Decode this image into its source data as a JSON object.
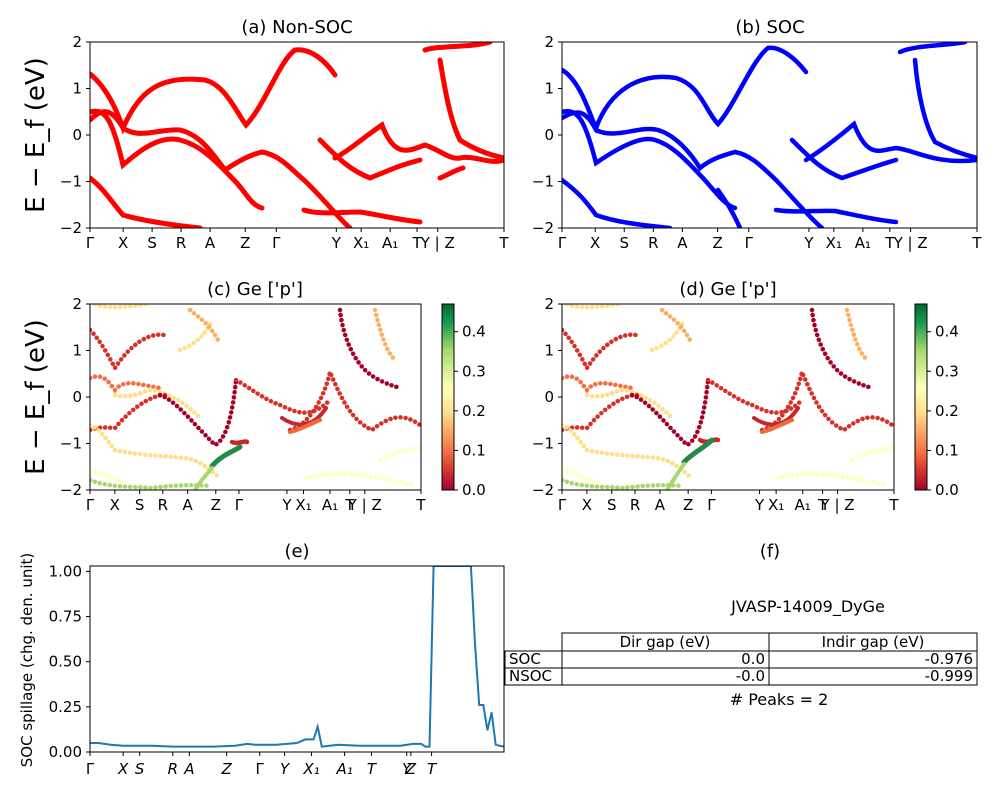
{
  "colors": {
    "nonsoc_a": "#ff0000",
    "nonsoc_b": "#0000ff",
    "soc": "#0000ff",
    "spillage": "#1f77b4",
    "cmap": "RdYlGn"
  },
  "band_ylabel": "E − E_f (eV)",
  "kpath": [
    "Γ",
    "X",
    "S",
    "R",
    "A",
    "Z",
    "Γ",
    "Y",
    "X₁",
    "A₁",
    "T",
    "Y | Z",
    "T"
  ],
  "colorbar_ticks": [
    "0.0",
    "0.1",
    "0.2",
    "0.3",
    "0.4"
  ],
  "chart_data": [
    {
      "type": "line",
      "panel": "a",
      "title": "(a) Non-SOC",
      "ylabel": "E − E_f (eV)",
      "ylim": [
        -2,
        2
      ],
      "yticks": [
        "2",
        "1",
        "0",
        "−1",
        "−2"
      ],
      "xticks": [
        "Γ",
        "X",
        "S",
        "R",
        "A",
        "Z",
        "Γ",
        "Y",
        "X₁",
        "A₁",
        "T",
        "Y | Z",
        "T"
      ],
      "series": [
        {
          "name": "",
          "line_style": "red solid with blue dashes"
        }
      ]
    },
    {
      "type": "line",
      "panel": "b",
      "title": "(b) SOC",
      "ylim": [
        -2,
        2
      ],
      "yticks": [
        "2",
        "1",
        "0",
        "−1",
        "−2"
      ],
      "xticks": [
        "Γ",
        "X",
        "S",
        "R",
        "A",
        "Z",
        "Γ",
        "Y",
        "X₁",
        "A₁",
        "T",
        "Y | Z",
        "T"
      ]
    },
    {
      "type": "scatter",
      "panel": "c",
      "title": "(c)  Ge ['p']",
      "ylabel": "E − E_f (eV)",
      "ylim": [
        -2,
        2
      ],
      "colorbar_range": [
        0,
        0.47
      ],
      "yticks": [
        "2",
        "1",
        "0",
        "−1",
        "−2"
      ],
      "xticks": [
        "Γ",
        "X",
        "S",
        "R",
        "A",
        "Z",
        "Γ",
        "Y",
        "X₁",
        "A₁",
        "T",
        "Y | Z",
        "T"
      ]
    },
    {
      "type": "scatter",
      "panel": "d",
      "title": "(d) Ge ['p']",
      "ylim": [
        -2,
        2
      ],
      "colorbar_range": [
        0,
        0.47
      ],
      "yticks": [
        "2",
        "1",
        "0",
        "−1",
        "−2"
      ],
      "xticks": [
        "Γ",
        "X",
        "S",
        "R",
        "A",
        "Z",
        "Γ",
        "Y",
        "X₁",
        "A₁",
        "T",
        "Y | Z",
        "T"
      ]
    },
    {
      "type": "line",
      "panel": "e",
      "title": "(e)",
      "ylabel": "SOC spillage (chg. den. unit)",
      "ylim": [
        0,
        1.03
      ],
      "yticks": [
        "1.00",
        "0.75",
        "0.50",
        "0.25",
        "0.00"
      ],
      "xticks": [
        "Γ",
        "X",
        "S",
        "R",
        "A",
        "Z",
        "Γ",
        "Y",
        "X₁",
        "A₁",
        "T",
        "Y",
        "Z",
        "T"
      ],
      "x": [
        0,
        0.02,
        0.05,
        0.08,
        0.1,
        0.15,
        0.2,
        0.25,
        0.3,
        0.35,
        0.38,
        0.4,
        0.45,
        0.5,
        0.52,
        0.54,
        0.55,
        0.56,
        0.6,
        0.65,
        0.7,
        0.75,
        0.78,
        0.8,
        0.81,
        0.82,
        0.83,
        0.84,
        0.86,
        0.87,
        0.9,
        0.92,
        0.93,
        0.94,
        0.95,
        0.96,
        0.97,
        0.98,
        1.0
      ],
      "y": [
        0.05,
        0.05,
        0.04,
        0.035,
        0.035,
        0.035,
        0.03,
        0.03,
        0.03,
        0.035,
        0.045,
        0.04,
        0.04,
        0.05,
        0.07,
        0.07,
        0.14,
        0.03,
        0.04,
        0.035,
        0.035,
        0.035,
        0.045,
        0.045,
        0.03,
        0.03,
        1.03,
        1.03,
        1.03,
        1.03,
        1.03,
        1.03,
        0.6,
        0.26,
        0.26,
        0.12,
        0.22,
        0.04,
        0.03
      ],
      "series": [
        {
          "name": ""
        }
      ]
    }
  ],
  "panel_f": {
    "title": "(f)",
    "material": "JVASP-14009_DyGe",
    "columns": [
      "Dir gap (eV)",
      "Indir gap (eV)"
    ],
    "rows": [
      {
        "label": "SOC",
        "dir": "0.0",
        "indir": "-0.976"
      },
      {
        "label": "NSOC",
        "dir": "-0.0",
        "indir": "-0.999"
      }
    ],
    "peaks": "# Peaks = 2"
  }
}
